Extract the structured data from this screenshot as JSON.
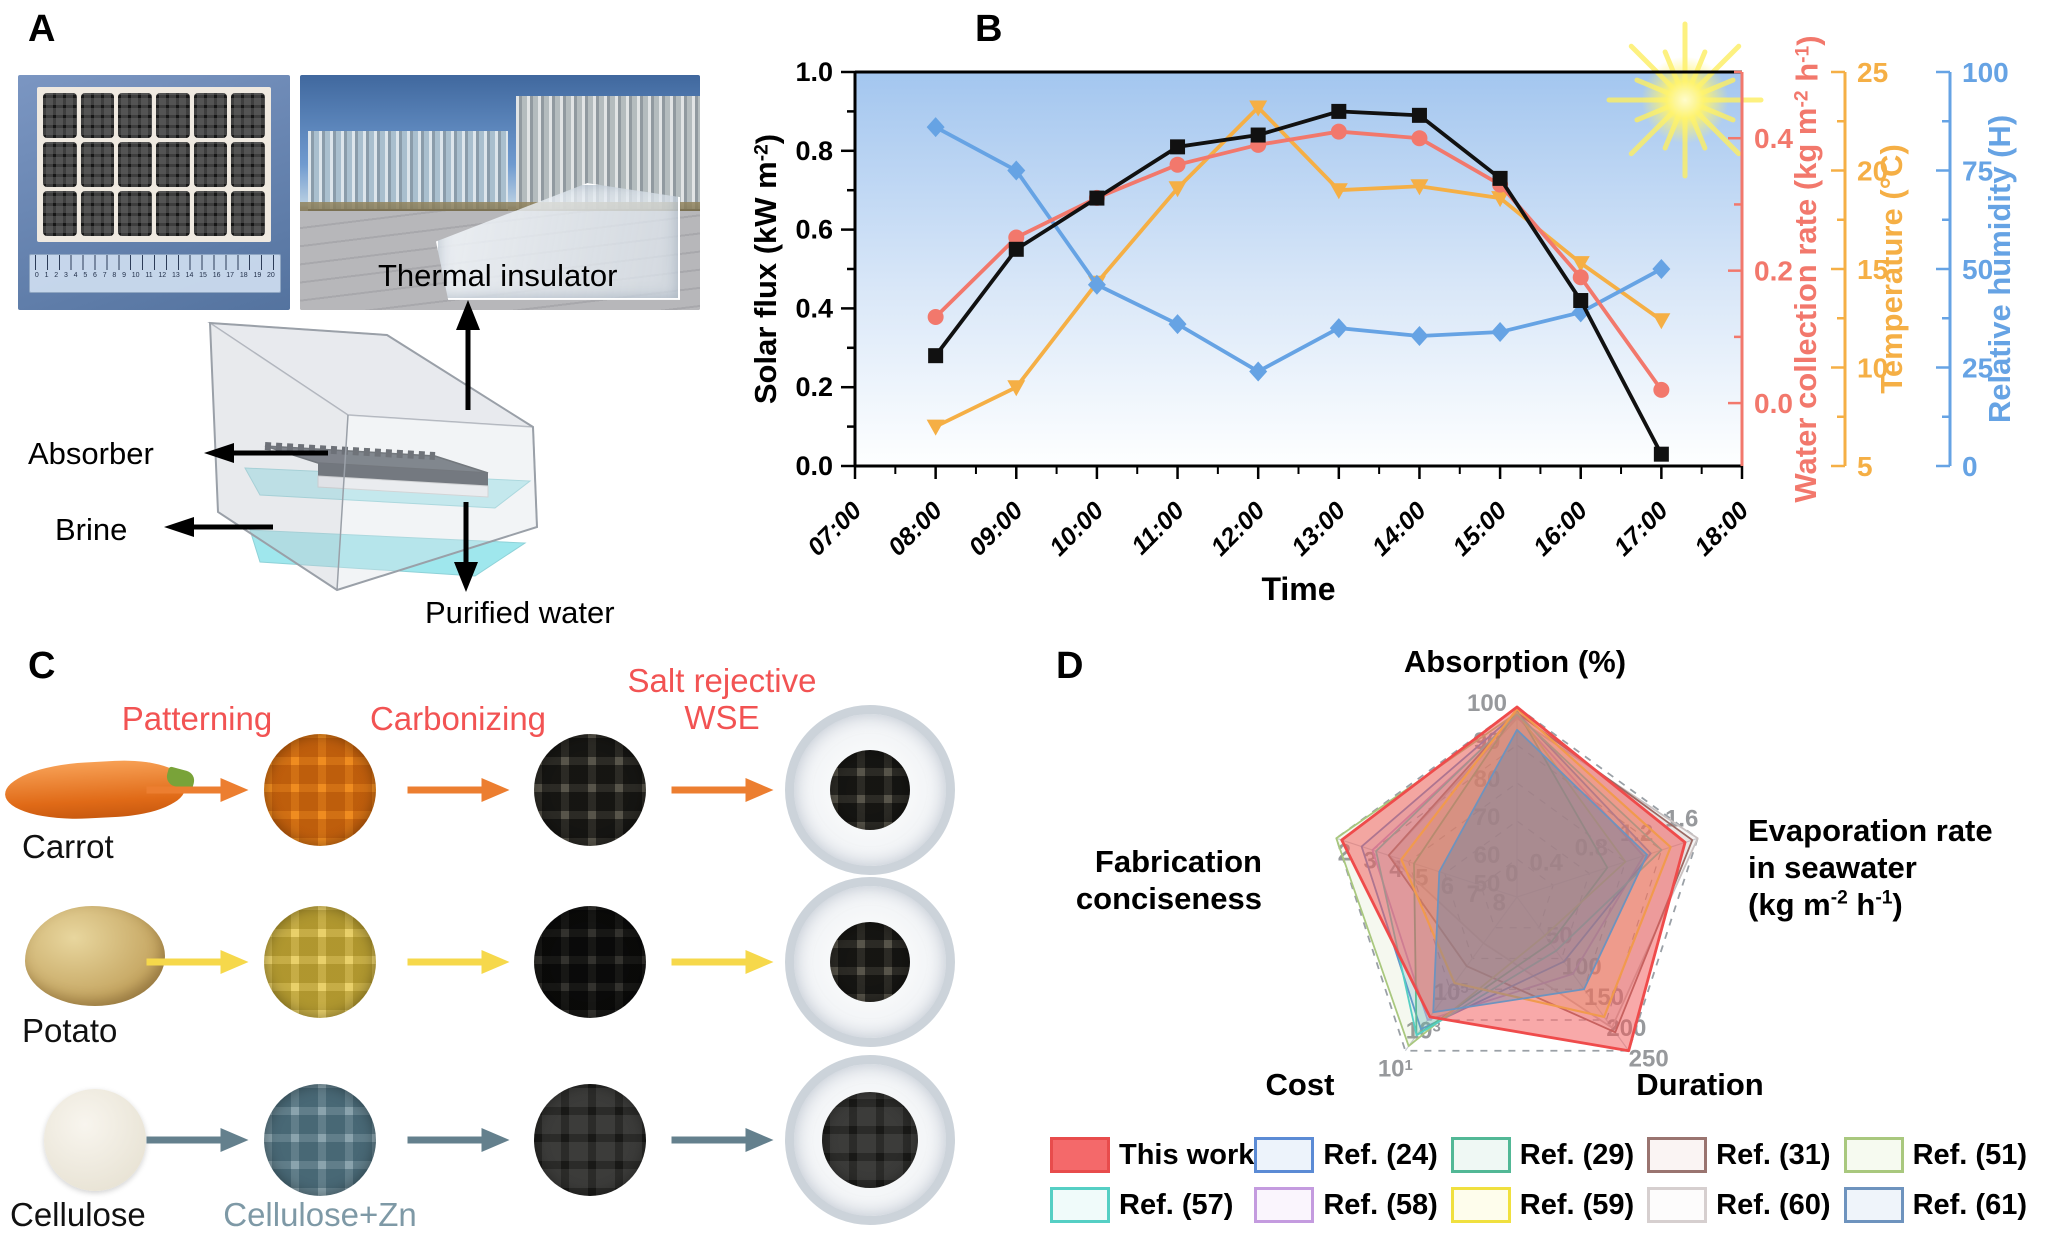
{
  "panel_labels": {
    "a": "A",
    "b": "B",
    "c": "C",
    "d": "D"
  },
  "panel_a": {
    "schematic": {
      "thermal_insulator": "Thermal insulator",
      "absorber": "Absorber",
      "brine": "Brine",
      "purified_water": "Purified water"
    },
    "ruler_numbers": [
      "0",
      "1",
      "2",
      "3",
      "4",
      "5",
      "6",
      "7",
      "8",
      "9",
      "10",
      "11",
      "12",
      "13",
      "14",
      "15",
      "16",
      "17",
      "18",
      "19",
      "20"
    ]
  },
  "chart_data": [
    {
      "id": "outdoor-performance",
      "type": "line",
      "x_label": "Time",
      "x_categories": [
        "07:00",
        "08:00",
        "09:00",
        "10:00",
        "11:00",
        "12:00",
        "13:00",
        "14:00",
        "15:00",
        "16:00",
        "17:00",
        "18:00"
      ],
      "grid": false,
      "background": {
        "sky_top": "#A3C6EF",
        "sky_mid": "#D9E7F8",
        "sky_bottom": "#FEFFFF",
        "sun": true
      },
      "axes": {
        "left": {
          "label": "Solar flux (kW m^{-2})",
          "color": "#111111",
          "min": 0,
          "max": 1.0,
          "major_ticks": [
            0.0,
            0.2,
            0.4,
            0.6,
            0.8,
            1.0
          ],
          "minor_step": 0.1
        },
        "right1": {
          "label": "Water collection rate (kg m^{-2} h^{-1})",
          "color": "#F2786C",
          "min": -0.095,
          "max": 0.5,
          "major_ticks": [
            0.0,
            0.2,
            0.4
          ],
          "minor_step": 0.1
        },
        "right2": {
          "label": "Temperature (°C)",
          "color": "#F5AF45",
          "min": 5,
          "max": 25,
          "major_ticks": [
            5,
            10,
            15,
            20,
            25
          ],
          "minor_step": 2.5
        },
        "right3": {
          "label": "Relative humidity (H)",
          "color": "#66A3E4",
          "min": 0,
          "max": 100,
          "major_ticks": [
            0,
            25,
            50,
            75,
            100
          ],
          "minor_step": 12.5
        }
      },
      "series": [
        {
          "name": "Solar flux",
          "axis": "left",
          "color": "#111111",
          "marker": "square",
          "x": [
            "08:00",
            "09:00",
            "10:00",
            "11:00",
            "12:00",
            "13:00",
            "14:00",
            "15:00",
            "16:00",
            "17:00"
          ],
          "values": [
            0.28,
            0.55,
            0.68,
            0.81,
            0.84,
            0.9,
            0.89,
            0.73,
            0.42,
            0.03
          ]
        },
        {
          "name": "Water collection rate",
          "axis": "right1",
          "color": "#F2786C",
          "marker": "circle",
          "x": [
            "08:00",
            "09:00",
            "10:00",
            "11:00",
            "12:00",
            "13:00",
            "14:00",
            "15:00",
            "16:00",
            "17:00"
          ],
          "values": [
            0.13,
            0.25,
            0.31,
            0.36,
            0.39,
            0.41,
            0.4,
            0.33,
            0.19,
            0.02
          ]
        },
        {
          "name": "Temperature",
          "axis": "right2",
          "color": "#F5AF45",
          "marker": "triangle-down",
          "x": [
            "08:00",
            "09:00",
            "10:00",
            "11:00",
            "12:00",
            "13:00",
            "14:00",
            "15:00",
            "16:00",
            "17:00"
          ],
          "values": [
            7,
            9,
            14.3,
            19.1,
            23.2,
            19,
            19.2,
            18.6,
            15.3,
            12.4
          ]
        },
        {
          "name": "Relative humidity",
          "axis": "right3",
          "color": "#66A3E4",
          "marker": "diamond",
          "x": [
            "08:00",
            "09:00",
            "10:00",
            "11:00",
            "12:00",
            "13:00",
            "14:00",
            "15:00",
            "16:00",
            "17:00"
          ],
          "values": [
            86,
            75,
            46,
            36,
            24,
            35,
            33,
            34,
            39,
            50
          ]
        }
      ]
    },
    {
      "id": "comparison-radar",
      "type": "radar",
      "axes": [
        {
          "name": "Absorption (%)",
          "min": 50,
          "max": 100,
          "ticks": [
            {
              "label": "50",
              "f": 0.05
            },
            {
              "label": "60",
              "f": 0.2
            },
            {
              "label": "70",
              "f": 0.4
            },
            {
              "label": "80",
              "f": 0.6
            },
            {
              "label": "90",
              "f": 0.8
            },
            {
              "label": "100",
              "f": 1
            }
          ]
        },
        {
          "name": "Evaporation rate in seawater (kg m^{-2} h^{-1})",
          "min": 0,
          "max": 1.6,
          "ticks": [
            {
              "label": "0",
              "f": 0.06
            },
            {
              "label": "0.4",
              "f": 0.25
            },
            {
              "label": "0.8",
              "f": 0.5
            },
            {
              "label": "1.2",
              "f": 0.75
            },
            {
              "label": "1.6",
              "f": 1
            }
          ]
        },
        {
          "name": "Duration",
          "min": 0,
          "max": 250,
          "ticks": [
            {
              "label": "50",
              "f": 0.2
            },
            {
              "label": "100",
              "f": 0.4
            },
            {
              "label": "150",
              "f": 0.6
            },
            {
              "label": "200",
              "f": 0.8
            },
            {
              "label": "250",
              "f": 1
            }
          ]
        },
        {
          "name": "Cost",
          "scale": "log-inverted",
          "center_value": "10^{9}",
          "outer_value": "10^{1}",
          "ticks": [
            {
              "label": "10^{5}",
              "f": 0.5
            },
            {
              "label": "10^{3}",
              "f": 0.75
            },
            {
              "label": "10^{1}",
              "f": 1
            }
          ]
        },
        {
          "name": "Fabrication conciseness",
          "min": 9,
          "max": 2,
          "ticks": [
            {
              "label": "8",
              "f": 0.143
            },
            {
              "label": "7",
              "f": 0.286
            },
            {
              "label": "6",
              "f": 0.429
            },
            {
              "label": "5",
              "f": 0.571
            },
            {
              "label": "4",
              "f": 0.714
            },
            {
              "label": "3",
              "f": 0.857
            },
            {
              "label": "2",
              "f": 1
            }
          ]
        }
      ],
      "axis_order": [
        "Absorption (%)",
        "Evaporation rate in seawater",
        "Duration",
        "Cost",
        "Fabrication conciseness"
      ],
      "series": [
        {
          "name": "This work",
          "color": "#EF4B4B",
          "fill": "rgba(242,90,90,0.52)",
          "z": 9,
          "width": 2.8,
          "values_f": [
            1.0,
            0.93,
            1.0,
            0.78,
            0.97
          ],
          "values_est": {
            "absorption": 100,
            "evaporation_rate": 1.5,
            "duration": 250,
            "cost": 580,
            "fabrication_steps": 2
          }
        },
        {
          "name": "Ref. (24)",
          "color": "#5B8BD5",
          "fill": "rgba(91,139,213,0.13)",
          "z": 4,
          "width": 1.8,
          "values_f": [
            0.97,
            0.74,
            0.42,
            0.86,
            0.86
          ],
          "values_est": {
            "absorption": 98,
            "evaporation_rate": 1.18,
            "duration": 105,
            "cost": 130,
            "fabrication_steps": 3
          }
        },
        {
          "name": "Ref. (29)",
          "color": "#52B896",
          "fill": "rgba(82,184,150,0.13)",
          "z": 5,
          "width": 1.8,
          "values_f": [
            0.98,
            0.5,
            0.3,
            0.9,
            0.57
          ],
          "values_est": {
            "absorption": 99,
            "evaporation_rate": 0.8,
            "duration": 75,
            "cost": 63,
            "fabrication_steps": 5
          }
        },
        {
          "name": "Ref. (31)",
          "color": "#9A6A64",
          "fill": "rgba(154,106,100,0.12)",
          "z": 3,
          "width": 1.8,
          "values_f": [
            0.97,
            0.97,
            0.88,
            0.45,
            0.71
          ],
          "values_est": {
            "absorption": 98,
            "evaporation_rate": 1.55,
            "duration": 220,
            "cost": 250000,
            "fabrication_steps": 4
          }
        },
        {
          "name": "Ref. (51)",
          "color": "#A9C87E",
          "fill": "rgba(169,200,126,0.12)",
          "z": 6,
          "width": 1.8,
          "values_f": [
            0.97,
            0.6,
            0.25,
            0.97,
            1.0
          ],
          "values_est": {
            "absorption": 98,
            "evaporation_rate": 0.96,
            "duration": 62,
            "cost": 17,
            "fabrication_steps": 2
          }
        },
        {
          "name": "Ref. (57)",
          "color": "#55CFC4",
          "fill": "rgba(85,207,196,0.12)",
          "z": 7,
          "width": 1.8,
          "values_f": [
            0.96,
            0.8,
            0.35,
            0.9,
            0.78
          ],
          "values_est": {
            "absorption": 98,
            "evaporation_rate": 1.28,
            "duration": 88,
            "cost": 63,
            "fabrication_steps": 3.5
          }
        },
        {
          "name": "Ref. (58)",
          "color": "#C49BDF",
          "fill": "rgba(196,155,223,0.12)",
          "z": 2,
          "width": 1.8,
          "values_f": [
            0.95,
            0.7,
            0.5,
            0.8,
            0.8
          ],
          "values_est": {
            "absorption": 97,
            "evaporation_rate": 1.12,
            "duration": 125,
            "cost": 400,
            "fabrication_steps": 3.5
          }
        },
        {
          "name": "Ref. (59)",
          "color": "#F0DF3F",
          "fill": "rgba(240,223,63,0.18)",
          "z": 8,
          "width": 2.2,
          "values_f": [
            0.99,
            0.85,
            0.78,
            0.56,
            0.64
          ],
          "values_est": {
            "absorption": 99,
            "evaporation_rate": 1.36,
            "duration": 195,
            "cost": 30000,
            "fabrication_steps": 4.5
          }
        },
        {
          "name": "Ref. (60)",
          "color": "#C9C2C2",
          "fill": "rgba(200,195,195,0.2)",
          "z": 1,
          "width": 1.8,
          "values_f": [
            0.94,
            1.0,
            0.85,
            0.3,
            0.71
          ],
          "values_est": {
            "absorption": 97,
            "evaporation_rate": 1.6,
            "duration": 212,
            "cost": 4000000,
            "fabrication_steps": 4
          }
        },
        {
          "name": "Ref. (61)",
          "color": "#6E93BE",
          "fill": "rgba(104,130,165,0.42)",
          "z": 10,
          "width": 1.8,
          "values_f": [
            0.88,
            0.72,
            0.6,
            0.75,
            0.43
          ],
          "values_est": {
            "absorption": 94,
            "evaporation_rate": 1.15,
            "duration": 150,
            "cost": 1000,
            "fabrication_steps": 6
          }
        }
      ]
    }
  ],
  "panel_d": {
    "titles": {
      "absorption": "Absorption (%)",
      "evaporation_lines": [
        "Evaporation rate",
        "in seawater",
        "(kg m^{-2} h^{-1})"
      ],
      "duration": "Duration",
      "cost": "Cost",
      "fabrication_lines": [
        "Fabrication",
        "conciseness"
      ]
    },
    "legend": [
      {
        "label": "This work",
        "border": "#E84C4C",
        "fill": "#F4696A"
      },
      {
        "label": "Ref. (24)",
        "border": "#5B8BD5",
        "fill": "#EDF3FB"
      },
      {
        "label": "Ref. (29)",
        "border": "#52B896",
        "fill": "#EFF8F4"
      },
      {
        "label": "Ref. (31)",
        "border": "#9A7470",
        "fill": "#FAF4F3"
      },
      {
        "label": "Ref. (51)",
        "border": "#A9C87E",
        "fill": "#F6FAF0"
      },
      {
        "label": "Ref. (57)",
        "border": "#55CFC4",
        "fill": "#F0FBFA"
      },
      {
        "label": "Ref. (58)",
        "border": "#C49BDF",
        "fill": "#FAF5FD"
      },
      {
        "label": "Ref. (59)",
        "border": "#F0E03F",
        "fill": "#FEFDEC"
      },
      {
        "label": "Ref. (60)",
        "border": "#D6CFCF",
        "fill": "#FDFCFC"
      },
      {
        "label": "Ref. (61)",
        "border": "#6E93BE",
        "fill": "#EFF4FA"
      }
    ]
  },
  "panel_c": {
    "step_labels": [
      "Patterning",
      "Carbonizing",
      "Salt rejective WSE"
    ],
    "step_label_color": "#F25353",
    "rows": [
      {
        "source": "Carrot",
        "arrow_color": "#EC7E30",
        "items": [
          "carrot",
          "waffle-orange",
          "waffle-dark",
          "dish-dark"
        ],
        "mid_label": null
      },
      {
        "source": "Potato",
        "arrow_color": "#F6D84B",
        "items": [
          "potato",
          "waffle-yellow",
          "waffle-black",
          "dish-dark"
        ],
        "mid_label": null
      },
      {
        "source": "Cellulose",
        "arrow_color": "#64808D",
        "items": [
          "disc-white",
          "waffle-blue",
          "disc-black",
          "dish-black"
        ],
        "mid_label": "Cellulose+Zn",
        "mid_label_color": "#7E99A6"
      }
    ]
  }
}
